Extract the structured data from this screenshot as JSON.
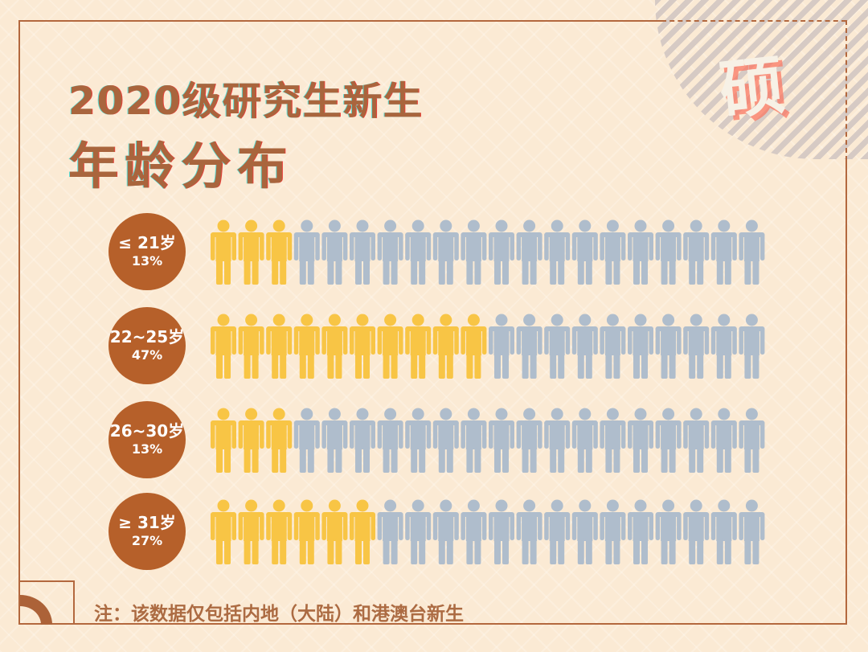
{
  "badge_char": "硕",
  "title_line1": "2020级研究生新生",
  "title_line2": "年龄分布",
  "note": "注：该数据仅包括内地（大陆）和港澳台新生",
  "colors": {
    "filled": "#f8c545",
    "empty": "#afbdcc",
    "circle": "#b6602a",
    "title": "#a9653d"
  },
  "chart_data": {
    "type": "bar",
    "style": "pictogram",
    "icon": "person-icon",
    "icons_per_row": 20,
    "categories": [
      "≤ 21岁",
      "22~25岁",
      "26~30岁",
      "≥ 31岁"
    ],
    "values": [
      13,
      47,
      13,
      27
    ],
    "value_labels": [
      "13%",
      "47%",
      "13%",
      "27%"
    ],
    "filled_icons": [
      3,
      10,
      3,
      6
    ]
  }
}
